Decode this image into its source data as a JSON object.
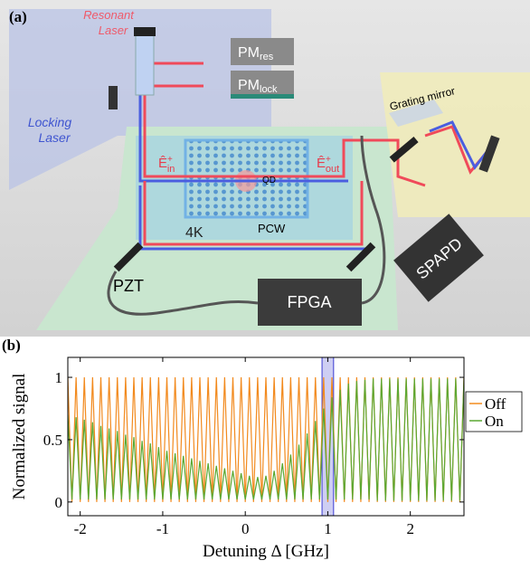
{
  "panel_a": {
    "label": "(a)",
    "resonant_laser": [
      "Resonant",
      "Laser"
    ],
    "locking_laser": [
      "Locking",
      "Laser"
    ],
    "pm_res": {
      "main": "PM",
      "sub": "res"
    },
    "pm_lock": {
      "main": "PM",
      "sub": "lock"
    },
    "grating_mirror": "Grating mirror",
    "e_in": {
      "main": "Ê",
      "sup": "+",
      "sub": "in"
    },
    "e_out": {
      "main": "Ê",
      "sup": "+",
      "sub": "out"
    },
    "qd": "QD",
    "temperature": "4K",
    "pcw": "PCW",
    "pzt": "PZT",
    "fpga": "FPGA",
    "spapd": "SPAPD"
  },
  "panel_b": {
    "label": "(b)"
  },
  "chart_data": {
    "type": "line",
    "xlabel": "Detuning Δ [GHz]",
    "ylabel": "Normalized signal",
    "xlim": [
      -2.15,
      2.65
    ],
    "ylim": [
      -0.11,
      1.16
    ],
    "xticks": [
      -2,
      -1,
      0,
      1,
      2
    ],
    "yticks": [
      0,
      0.5,
      1
    ],
    "highlight": [
      0.93,
      1.07
    ],
    "highlight_color": "#3a3ad0",
    "legend": "right",
    "x": [
      -2.15,
      -2.1,
      -2.05,
      -2,
      -1.95,
      -1.9,
      -1.85,
      -1.8,
      -1.75,
      -1.7,
      -1.65,
      -1.6,
      -1.55,
      -1.5,
      -1.45,
      -1.4,
      -1.35,
      -1.3,
      -1.25,
      -1.2,
      -1.15,
      -1.1,
      -1.05,
      -1,
      -0.95,
      -0.9,
      -0.85,
      -0.8,
      -0.75,
      -0.7,
      -0.65,
      -0.6,
      -0.55,
      -0.5,
      -0.45,
      -0.4,
      -0.35,
      -0.3,
      -0.25,
      -0.2,
      -0.15,
      -0.1,
      -0.05,
      0,
      0.05,
      0.1,
      0.15,
      0.2,
      0.25,
      0.3,
      0.35,
      0.4,
      0.45,
      0.5,
      0.55,
      0.6,
      0.65,
      0.7,
      0.75,
      0.8,
      0.85,
      0.9,
      0.95,
      1,
      1.05,
      1.1,
      1.15,
      1.2,
      1.25,
      1.3,
      1.35,
      1.4,
      1.45,
      1.5,
      1.55,
      1.6,
      1.65,
      1.7,
      1.75,
      1.8,
      1.85,
      1.9,
      1.95,
      2,
      2.05,
      2.1,
      2.15,
      2.2,
      2.25,
      2.3,
      2.35,
      2.4,
      2.45,
      2.5,
      2.55,
      2.6,
      2.65
    ],
    "series": [
      {
        "name": "Off",
        "color": "#f28a1e",
        "values": [
          1,
          0,
          1,
          0,
          1,
          0,
          1,
          0,
          1,
          0,
          1,
          0,
          1,
          0,
          1,
          0,
          1,
          0,
          1,
          0,
          1,
          0,
          1,
          0,
          1,
          0,
          1,
          0,
          1,
          0,
          1,
          0,
          1,
          0,
          1,
          0,
          1,
          0,
          1,
          0,
          1,
          0,
          1,
          0,
          1,
          0,
          1,
          0,
          1,
          0,
          1,
          0,
          1,
          0,
          1,
          0,
          1,
          0,
          1,
          0,
          1,
          0,
          1,
          0,
          1,
          0,
          1,
          0,
          1,
          0,
          1,
          0,
          1,
          0,
          1,
          0,
          1,
          0,
          1,
          0,
          1,
          0,
          1,
          0,
          1,
          0,
          1,
          0,
          1,
          0,
          1,
          0,
          1,
          0,
          1,
          0,
          1
        ]
      },
      {
        "name": "On",
        "color": "#5aa832",
        "values": [
          0.7,
          0.02,
          0.68,
          0.02,
          0.66,
          0.02,
          0.64,
          0.02,
          0.61,
          0.02,
          0.59,
          0.02,
          0.57,
          0.02,
          0.54,
          0.02,
          0.52,
          0.02,
          0.49,
          0.02,
          0.47,
          0.02,
          0.44,
          0.02,
          0.41,
          0.02,
          0.39,
          0.02,
          0.37,
          0.02,
          0.35,
          0.02,
          0.33,
          0.02,
          0.31,
          0.02,
          0.29,
          0.02,
          0.27,
          0.02,
          0.25,
          0.02,
          0.23,
          0.02,
          0.21,
          0.02,
          0.2,
          0.02,
          0.21,
          0.02,
          0.25,
          0.02,
          0.31,
          0.02,
          0.38,
          0.02,
          0.46,
          0.02,
          0.55,
          0.02,
          0.65,
          0.02,
          0.75,
          0.02,
          0.84,
          0.02,
          0.9,
          0.02,
          0.95,
          0.02,
          0.97,
          0.02,
          0.98,
          0.02,
          0.99,
          0.01,
          0.99,
          0.01,
          0.99,
          0.01,
          0.99,
          0.01,
          0.99,
          0.01,
          0.99,
          0.01,
          0.99,
          0.01,
          0.99,
          0.01,
          0.99,
          0.01,
          0.99,
          0.01,
          0.99,
          0.01,
          0.99
        ]
      }
    ]
  }
}
